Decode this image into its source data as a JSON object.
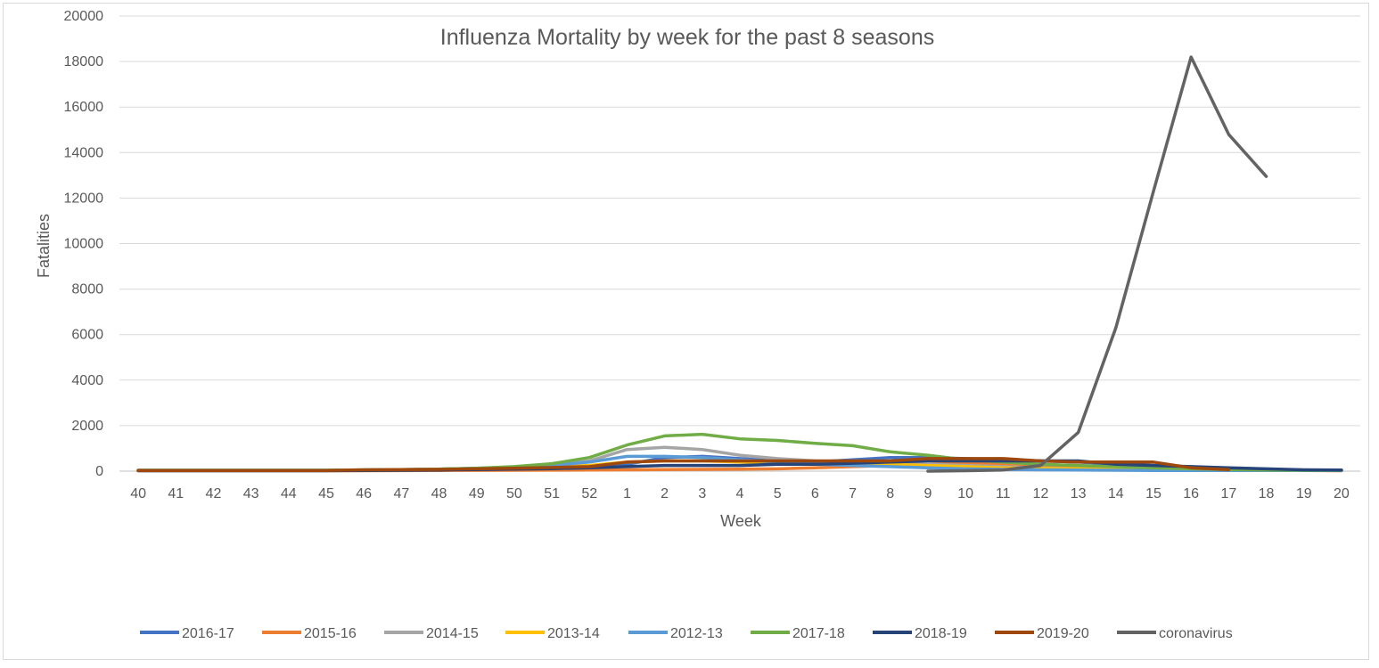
{
  "chart_data": {
    "type": "line",
    "title": "Influenza Mortality by week for the past 8 seasons",
    "xlabel": "Week",
    "ylabel": "Fatalities",
    "ylim": [
      0,
      20000
    ],
    "yticks": [
      0,
      2000,
      4000,
      6000,
      8000,
      10000,
      12000,
      14000,
      16000,
      18000,
      20000
    ],
    "grid": true,
    "legend_position": "bottom",
    "categories": [
      "40",
      "41",
      "42",
      "43",
      "44",
      "45",
      "46",
      "47",
      "48",
      "49",
      "50",
      "51",
      "52",
      "1",
      "2",
      "3",
      "4",
      "5",
      "6",
      "7",
      "8",
      "9",
      "10",
      "11",
      "12",
      "13",
      "14",
      "15",
      "16",
      "17",
      "18",
      "19",
      "20"
    ],
    "series": [
      {
        "name": "2016-17",
        "color": "#4472c4",
        "values": [
          30,
          30,
          30,
          30,
          30,
          30,
          40,
          50,
          60,
          70,
          90,
          110,
          150,
          300,
          600,
          650,
          550,
          450,
          400,
          500,
          600,
          600,
          550,
          500,
          450,
          400,
          300,
          250,
          150,
          100,
          80,
          50,
          40
        ]
      },
      {
        "name": "2015-16",
        "color": "#ed7d31",
        "values": [
          20,
          20,
          20,
          20,
          20,
          20,
          20,
          25,
          30,
          35,
          40,
          45,
          50,
          60,
          70,
          80,
          90,
          100,
          150,
          200,
          250,
          300,
          350,
          300,
          250,
          200,
          150,
          100,
          80,
          50,
          40,
          30,
          20
        ]
      },
      {
        "name": "2014-15",
        "color": "#a5a5a5",
        "values": [
          40,
          40,
          40,
          40,
          40,
          40,
          50,
          70,
          90,
          120,
          170,
          250,
          450,
          950,
          1050,
          950,
          700,
          550,
          450,
          400,
          350,
          300,
          250,
          200,
          150,
          100,
          80,
          60,
          50,
          40,
          30,
          30,
          30
        ]
      },
      {
        "name": "2013-14",
        "color": "#ffc000",
        "values": [
          30,
          30,
          30,
          30,
          30,
          30,
          40,
          50,
          70,
          90,
          120,
          170,
          250,
          400,
          450,
          450,
          400,
          350,
          300,
          300,
          300,
          250,
          200,
          150,
          120,
          100,
          80,
          60,
          50,
          40,
          30,
          30,
          30
        ]
      },
      {
        "name": "2012-13",
        "color": "#5b9bd5",
        "values": [
          40,
          40,
          40,
          40,
          40,
          40,
          50,
          70,
          90,
          130,
          180,
          250,
          400,
          650,
          650,
          600,
          500,
          400,
          300,
          250,
          200,
          150,
          100,
          80,
          60,
          50,
          40,
          30,
          30,
          30,
          30,
          30,
          30
        ]
      },
      {
        "name": "2017-18",
        "color": "#70ad47",
        "values": [
          40,
          40,
          40,
          40,
          40,
          40,
          60,
          70,
          90,
          130,
          200,
          330,
          600,
          1150,
          1550,
          1620,
          1420,
          1350,
          1220,
          1120,
          850,
          700,
          500,
          400,
          300,
          250,
          200,
          150,
          100,
          70,
          50,
          40,
          40
        ]
      },
      {
        "name": "2018-19",
        "color": "#264478",
        "values": [
          20,
          20,
          20,
          20,
          20,
          20,
          30,
          40,
          50,
          70,
          90,
          110,
          150,
          200,
          250,
          250,
          250,
          300,
          300,
          350,
          400,
          450,
          450,
          450,
          450,
          450,
          300,
          250,
          200,
          150,
          100,
          60,
          50
        ]
      },
      {
        "name": "2019-20",
        "color": "#9e480e",
        "values": [
          30,
          30,
          30,
          30,
          30,
          30,
          60,
          70,
          80,
          100,
          130,
          160,
          200,
          400,
          450,
          450,
          450,
          450,
          450,
          450,
          450,
          550,
          550,
          550,
          450,
          400,
          400,
          400,
          150,
          70,
          null,
          null,
          null
        ]
      },
      {
        "name": "coronavirus",
        "color": "#636363",
        "values": [
          null,
          null,
          null,
          null,
          null,
          null,
          null,
          null,
          null,
          null,
          null,
          null,
          null,
          null,
          null,
          null,
          null,
          null,
          null,
          null,
          null,
          0,
          20,
          50,
          250,
          1700,
          6300,
          12300,
          18200,
          14800,
          12950,
          null,
          null
        ]
      }
    ]
  }
}
